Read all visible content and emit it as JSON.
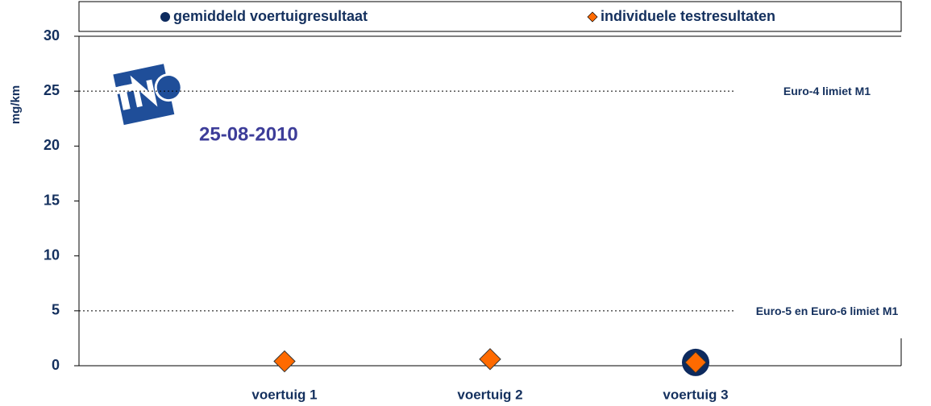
{
  "chart_data": {
    "type": "scatter",
    "y_label": "mg/km",
    "categories": [
      "voertuig 1",
      "voertuig 2",
      "voertuig 3"
    ],
    "series": [
      {
        "name": "gemiddeld voertuigresultaat",
        "color": "#0d2a5e",
        "marker": "circle",
        "values": [
          null,
          null,
          0.3
        ]
      },
      {
        "name": "individuele testresultaten",
        "color": "#ff6a00",
        "marker": "diamond",
        "values": [
          0.4,
          0.6,
          0.3
        ]
      }
    ],
    "ylim": [
      0,
      30
    ],
    "yticks": [
      0,
      5,
      10,
      15,
      20,
      25,
      30
    ],
    "reference_lines": [
      {
        "value": 25,
        "label": "Euro-4 limiet M1"
      },
      {
        "value": 5,
        "label": "Euro-5 en Euro-6 limiet M1"
      }
    ],
    "annotation": "25-08-2010",
    "legend": "top"
  }
}
